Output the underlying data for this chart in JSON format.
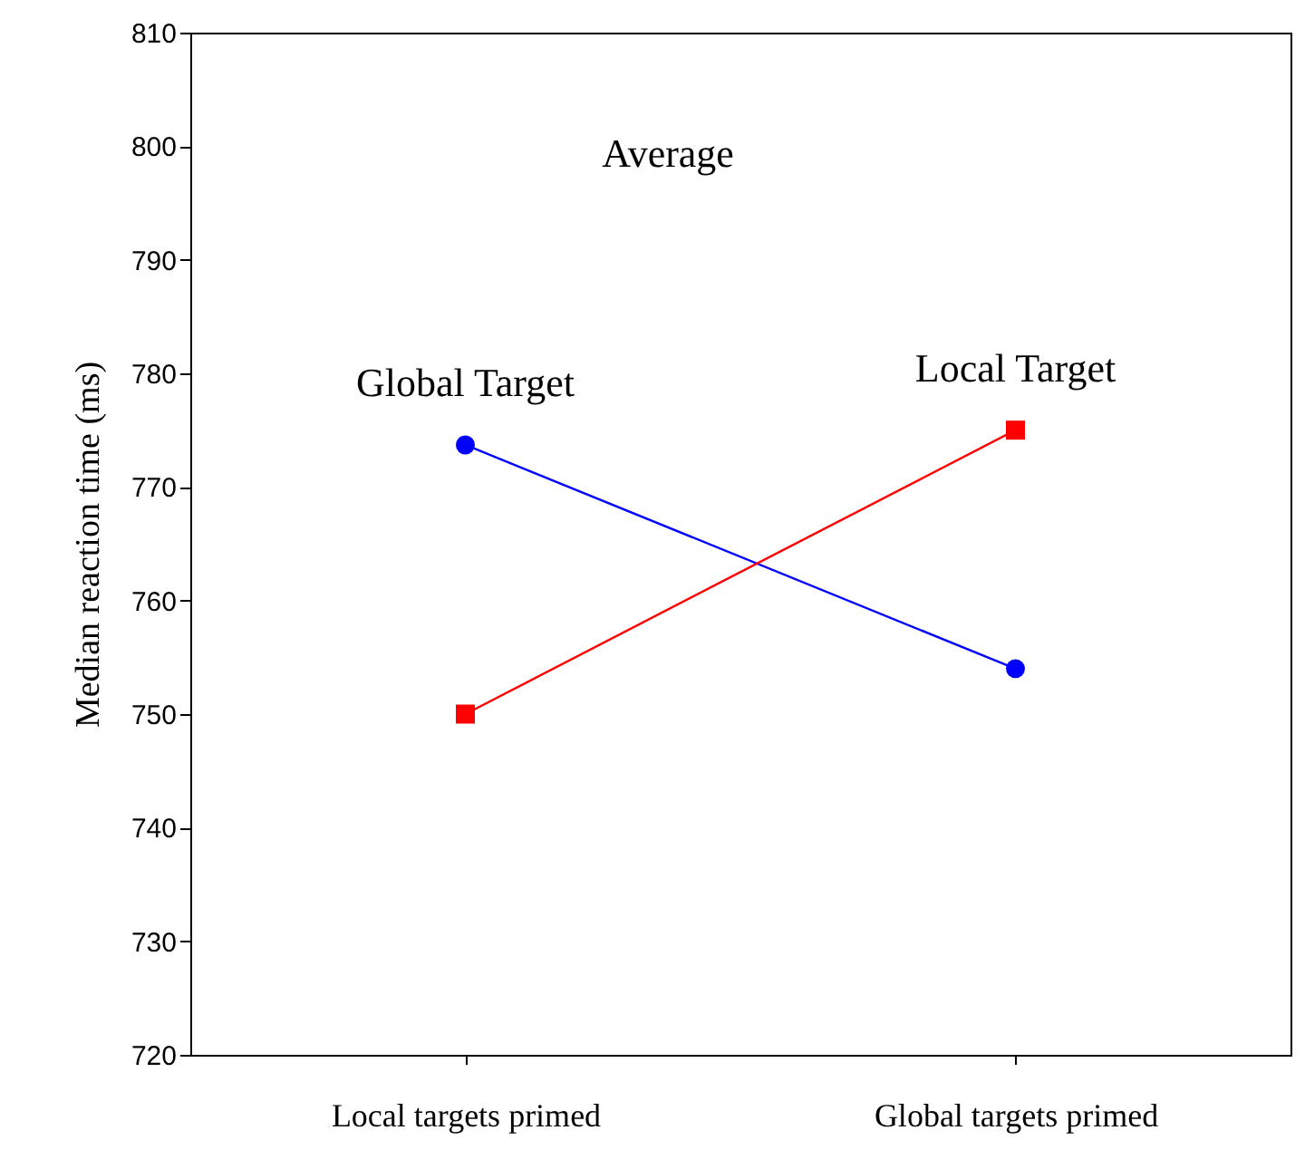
{
  "chart_data": {
    "type": "line",
    "title": "Average",
    "ylabel": "Median reaction time (ms)",
    "categories": [
      "Local targets primed",
      "Global targets primed"
    ],
    "series": [
      {
        "name": "Global Target",
        "color": "#0000ff",
        "marker": "circle",
        "values": [
          773.7,
          754
        ]
      },
      {
        "name": "Local Target",
        "color": "#ff0000",
        "marker": "square",
        "values": [
          750,
          775
        ]
      }
    ],
    "ylim": [
      720,
      810
    ],
    "yticks": [
      720,
      730,
      740,
      750,
      760,
      770,
      780,
      790,
      800,
      810
    ],
    "grid": false,
    "legend": false
  }
}
